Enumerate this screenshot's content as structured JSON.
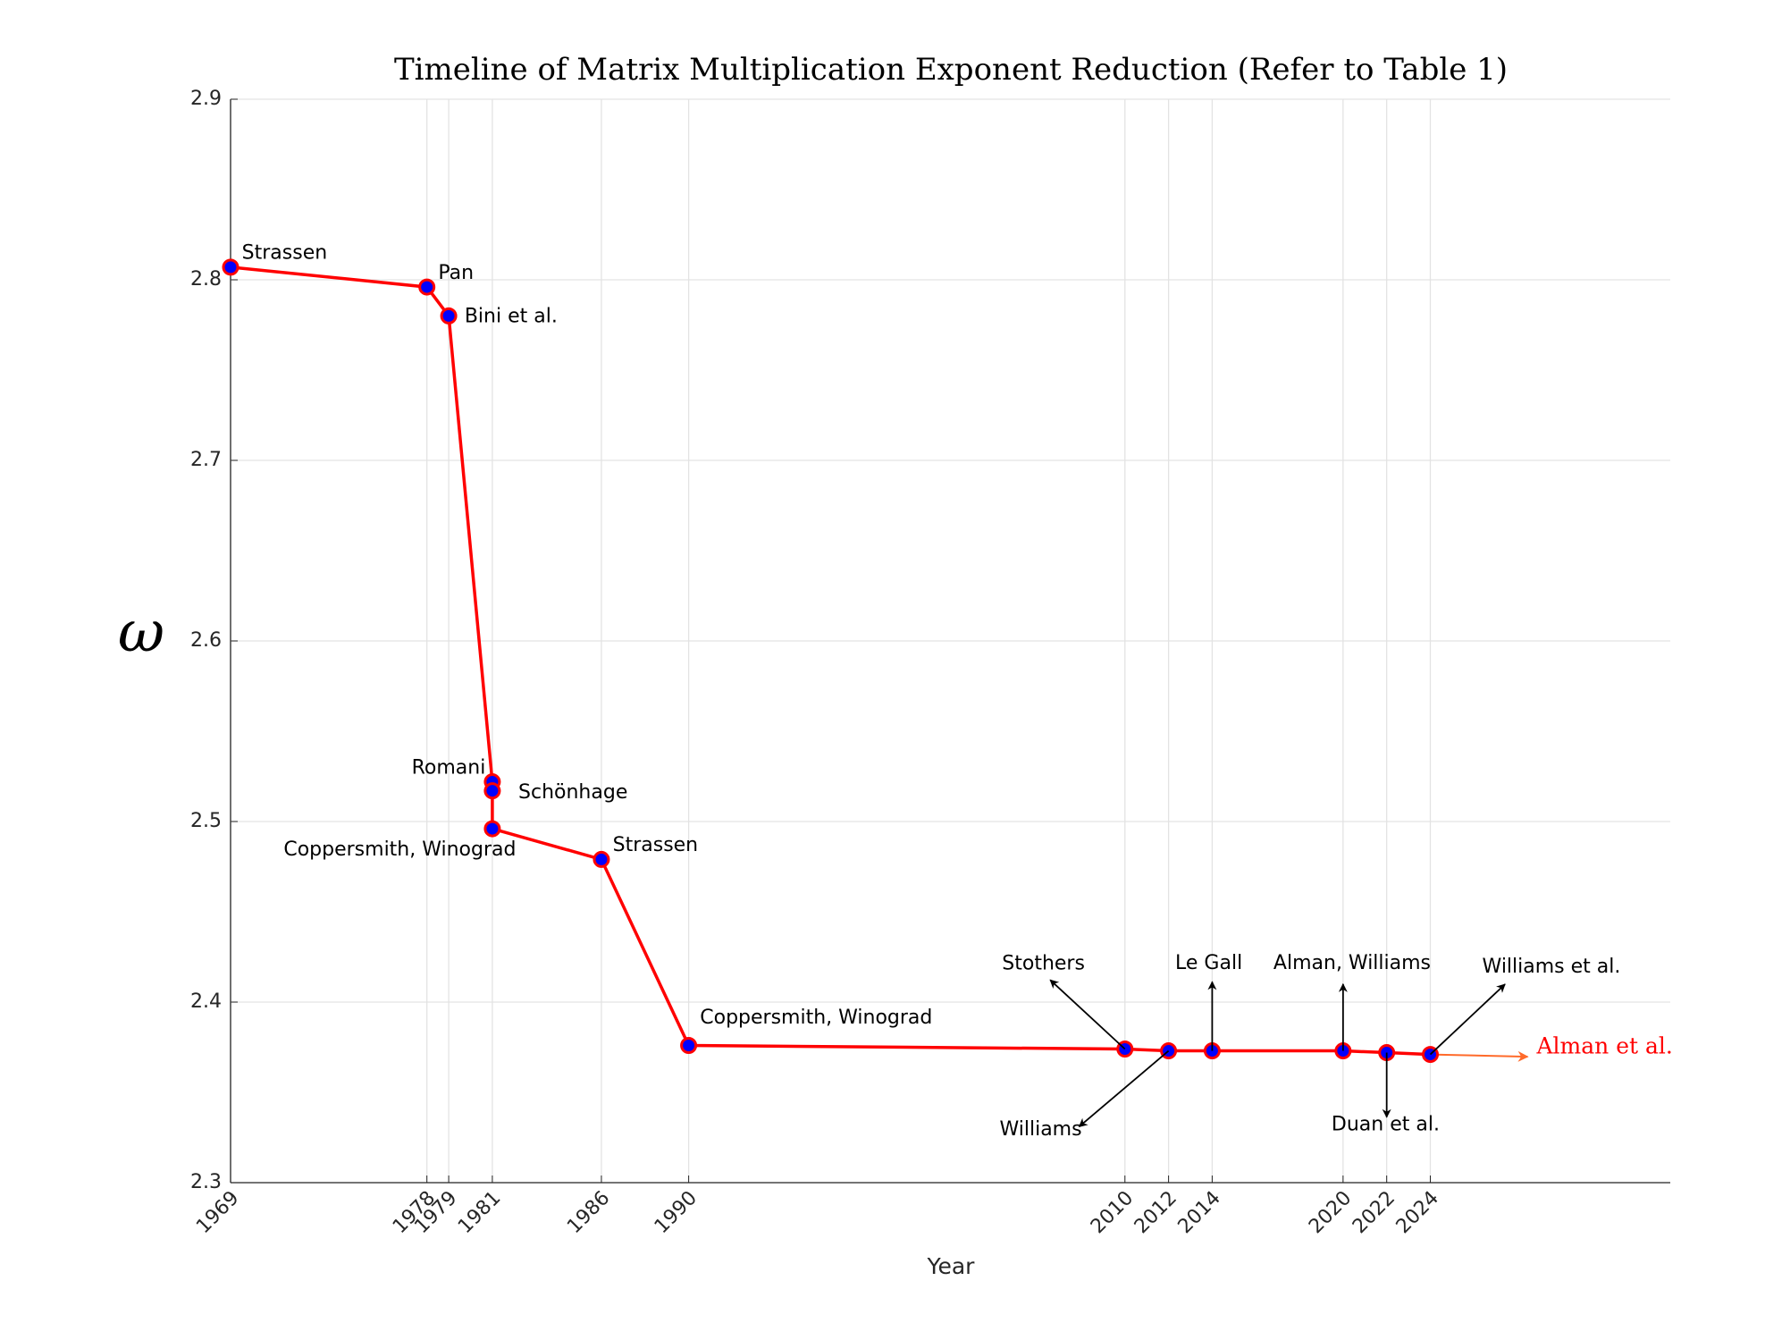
{
  "chart_data": {
    "type": "line",
    "title": "Timeline of Matrix Multiplication Exponent Reduction (Refer to Table 1)",
    "x_label": "Year",
    "y_label": "ω",
    "x": [
      1969,
      1978,
      1979,
      1981,
      1981,
      1981,
      1986,
      1990,
      2010,
      2012,
      2014,
      2020,
      2022,
      2024
    ],
    "series": [
      {
        "color": "#ff0000",
        "marker_color": "#0000ff",
        "values": [
          2.807,
          2.796,
          2.78,
          2.522,
          2.517,
          2.496,
          2.479,
          2.376,
          2.374,
          2.373,
          2.373,
          2.373,
          2.372,
          2.371
        ],
        "point_labels": [
          "Strassen",
          "Pan",
          "Bini et al.",
          "Schönhage",
          "Romani",
          "Coppersmith, Winograd",
          "Strassen",
          "Coppersmith, Winograd",
          "Stothers",
          "Williams",
          "Le Gall",
          "Alman, Williams",
          "Duan et al.",
          "Williams et al."
        ]
      }
    ],
    "annotation": {
      "text": "Alman et al.",
      "color": "#ff0000",
      "arrow_color": "#ff6a2a"
    },
    "xlim": [
      1969,
      2035
    ],
    "ylim": [
      2.3,
      2.9
    ],
    "xticks": [
      1969,
      1978,
      1979,
      1981,
      1986,
      1990,
      2010,
      2012,
      2014,
      2020,
      2022,
      2024
    ],
    "yticks": [
      2.3,
      2.4,
      2.5,
      2.6,
      2.7,
      2.8,
      2.9
    ],
    "grid": true
  }
}
